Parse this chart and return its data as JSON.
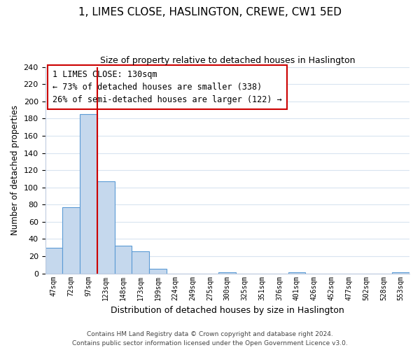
{
  "title": "1, LIMES CLOSE, HASLINGTON, CREWE, CW1 5ED",
  "subtitle": "Size of property relative to detached houses in Haslington",
  "xlabel": "Distribution of detached houses by size in Haslington",
  "ylabel": "Number of detached properties",
  "bar_labels": [
    "47sqm",
    "72sqm",
    "97sqm",
    "123sqm",
    "148sqm",
    "173sqm",
    "199sqm",
    "224sqm",
    "249sqm",
    "275sqm",
    "300sqm",
    "325sqm",
    "351sqm",
    "376sqm",
    "401sqm",
    "426sqm",
    "452sqm",
    "477sqm",
    "502sqm",
    "528sqm",
    "553sqm"
  ],
  "bar_values": [
    30,
    77,
    185,
    107,
    32,
    26,
    5,
    0,
    0,
    0,
    1,
    0,
    0,
    0,
    1,
    0,
    0,
    0,
    0,
    0,
    1
  ],
  "bar_color": "#c5d8ed",
  "bar_edge_color": "#5b9bd5",
  "subject_line_color": "#cc0000",
  "ylim": [
    0,
    240
  ],
  "yticks": [
    0,
    20,
    40,
    60,
    80,
    100,
    120,
    140,
    160,
    180,
    200,
    220,
    240
  ],
  "annotation_title": "1 LIMES CLOSE: 130sqm",
  "annotation_line1": "← 73% of detached houses are smaller (338)",
  "annotation_line2": "26% of semi-detached houses are larger (122) →",
  "annotation_box_color": "#ffffff",
  "annotation_box_edge": "#cc0000",
  "footer_line1": "Contains HM Land Registry data © Crown copyright and database right 2024.",
  "footer_line2": "Contains public sector information licensed under the Open Government Licence v3.0.",
  "background_color": "#ffffff",
  "grid_color": "#d8e4f0"
}
